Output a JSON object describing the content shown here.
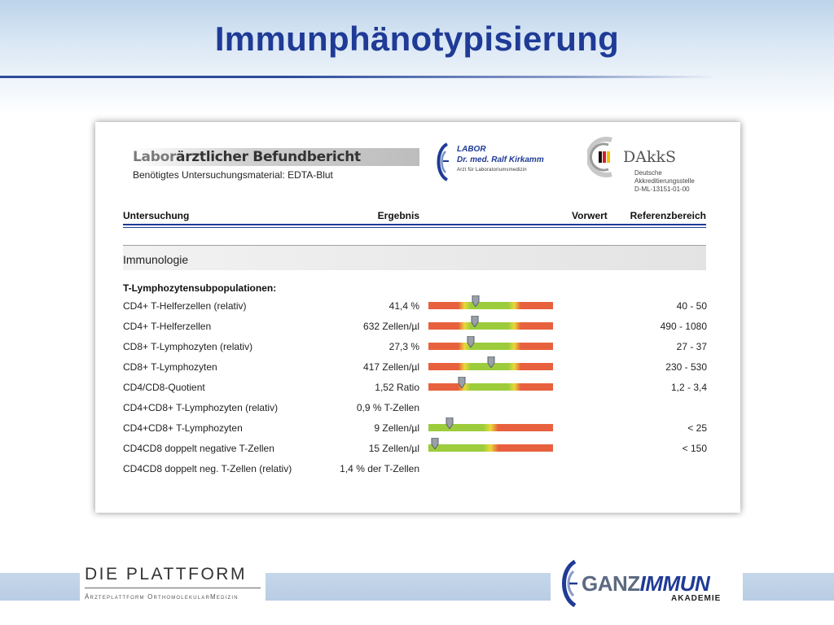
{
  "slide": {
    "title": "Immunphänotypisierung"
  },
  "report": {
    "title_light": "Labor",
    "title_dark": "ärztlicher Befundbericht",
    "subtitle": "Benötigtes Untersuchungsmaterial: EDTA-Blut",
    "lab_logo": {
      "line1": "LABOR",
      "line2_prefix": "Dr. med.",
      "line2_name": "Ralf Kirkamm",
      "line3": "Arzt für Laboratoriumsmedizin"
    },
    "dakks": {
      "word": "DAkkS",
      "line1": "Deutsche",
      "line2": "Akkreditierungsstelle",
      "line3": "D-ML-13151-01-00"
    },
    "columns": {
      "untersuchung": "Untersuchung",
      "ergebnis": "Ergebnis",
      "vorwert": "Vorwert",
      "referenzbereich": "Referenzbereich"
    },
    "section": "Immunologie",
    "subsection": "T-Lymphozytensubpopulationen:",
    "rows": [
      {
        "name": "CD4+ T-Helferzellen (relativ)",
        "result": "41,4 %",
        "reference": "40 - 50",
        "bar": "range",
        "marker": 0.38
      },
      {
        "name": "CD4+ T-Helferzellen",
        "result": "632 Zellen/µl",
        "reference": "490 - 1080",
        "bar": "range",
        "marker": 0.37
      },
      {
        "name": "CD8+ T-Lymphozyten (relativ)",
        "result": "27,3 %",
        "reference": "27 - 37",
        "bar": "range",
        "marker": 0.34
      },
      {
        "name": "CD8+ T-Lymphozyten",
        "result": "417 Zellen/µl",
        "reference": "230 - 530",
        "bar": "range",
        "marker": 0.5
      },
      {
        "name": "CD4/CD8-Quotient",
        "result": "1,52 Ratio",
        "reference": "1,2 - 3,4",
        "bar": "range",
        "marker": 0.27
      },
      {
        "name": "CD4+CD8+ T-Lymphozyten (relativ)",
        "result": "0,9 % T-Zellen",
        "reference": "",
        "bar": "none",
        "marker": null
      },
      {
        "name": "CD4+CD8+ T-Lymphozyten",
        "result": "9 Zellen/µl",
        "reference": "< 25",
        "bar": "upper",
        "marker": 0.17
      },
      {
        "name": "CD4CD8 doppelt negative T-Zellen",
        "result": "15 Zellen/µl",
        "reference": "< 150",
        "bar": "upper",
        "marker": 0.05
      },
      {
        "name": "CD4CD8 doppelt neg. T-Zellen (relativ)",
        "result": "1,4 % der T-Zellen",
        "reference": "",
        "bar": "none",
        "marker": null
      }
    ]
  },
  "footer": {
    "platform": "DIE PLATTFORM",
    "platform_sub": "Ärzteplattform OrthomolekularMedizin",
    "ganz": "GANZ",
    "immun": "IMMUN",
    "akademie": "AKADEMIE"
  },
  "colors": {
    "title": "#1f3b96",
    "bar_red": "#e8613e",
    "bar_green": "#9ccc3c",
    "bar_yellow": "#e9d83a"
  }
}
